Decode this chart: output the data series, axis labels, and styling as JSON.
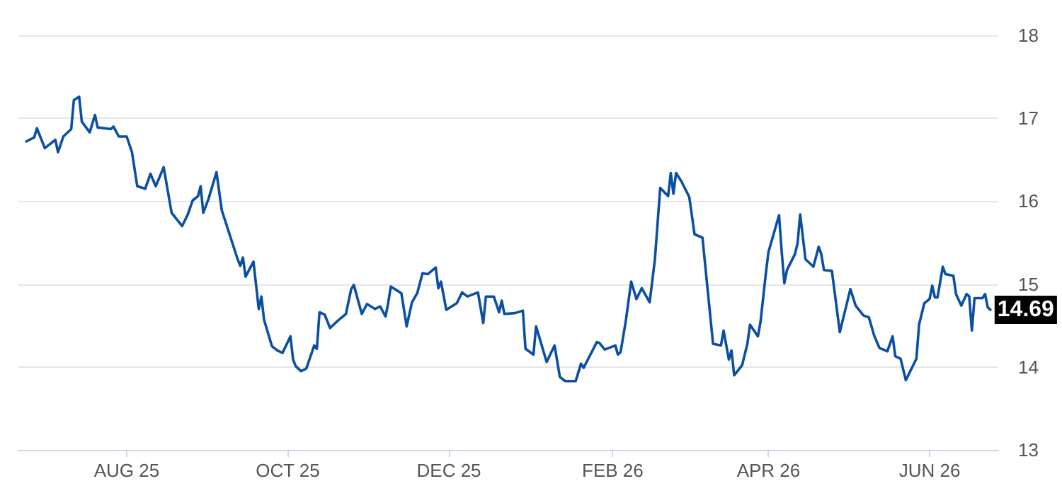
{
  "chart_data": {
    "type": "line",
    "color": "#0b4fa3",
    "x": [
      "2025-06-24",
      "2025-06-27",
      "2025-06-28",
      "2025-07-01",
      "2025-07-05",
      "2025-07-06",
      "2025-07-08",
      "2025-07-11",
      "2025-07-12",
      "2025-07-14",
      "2025-07-15",
      "2025-07-18",
      "2025-07-20",
      "2025-07-21",
      "2025-07-26",
      "2025-07-27",
      "2025-07-29",
      "2025-08-01",
      "2025-08-03",
      "2025-08-05",
      "2025-08-08",
      "2025-08-10",
      "2025-08-12",
      "2025-08-15",
      "2025-08-18",
      "2025-08-22",
      "2025-08-24",
      "2025-08-26",
      "2025-08-28",
      "2025-08-29",
      "2025-08-30",
      "2025-09-01",
      "2025-09-04",
      "2025-09-06",
      "2025-09-12",
      "2025-09-13",
      "2025-09-14",
      "2025-09-15",
      "2025-09-18",
      "2025-09-20",
      "2025-09-21",
      "2025-09-22",
      "2025-09-25",
      "2025-09-27",
      "2025-09-29",
      "2025-10-02",
      "2025-10-03",
      "2025-10-04",
      "2025-10-06",
      "2025-10-08",
      "2025-10-11",
      "2025-10-12",
      "2025-10-13",
      "2025-10-15",
      "2025-10-17",
      "2025-10-20",
      "2025-10-23",
      "2025-10-25",
      "2025-10-26",
      "2025-10-29",
      "2025-10-31",
      "2025-11-03",
      "2025-11-05",
      "2025-11-07",
      "2025-11-08",
      "2025-11-09",
      "2025-11-13",
      "2025-11-15",
      "2025-11-17",
      "2025-11-19",
      "2025-11-21",
      "2025-11-23",
      "2025-11-26",
      "2025-11-27",
      "2025-11-28",
      "2025-11-30",
      "2025-12-04",
      "2025-12-06",
      "2025-12-08",
      "2025-12-12",
      "2025-12-14",
      "2025-12-15",
      "2025-12-18",
      "2025-12-20",
      "2025-12-21",
      "2025-12-22",
      "2025-12-26",
      "2025-12-29",
      "2025-12-30",
      "2026-01-02",
      "2026-01-03",
      "2026-01-07",
      "2026-01-10",
      "2026-01-12",
      "2026-01-14",
      "2026-01-18",
      "2026-01-20",
      "2026-01-21",
      "2026-01-26",
      "2026-01-27",
      "2026-01-29",
      "2026-02-02",
      "2026-02-03",
      "2026-02-04",
      "2026-02-06",
      "2026-02-08",
      "2026-02-10",
      "2026-02-12",
      "2026-02-15",
      "2026-02-17",
      "2026-02-19",
      "2026-02-22",
      "2026-02-23",
      "2026-02-24",
      "2026-02-25",
      "2026-02-27",
      "2026-03-02",
      "2026-03-04",
      "2026-03-07",
      "2026-03-11",
      "2026-03-14",
      "2026-03-15",
      "2026-03-17",
      "2026-03-18",
      "2026-03-19",
      "2026-03-22",
      "2026-03-24",
      "2026-03-25",
      "2026-03-28",
      "2026-03-29",
      "2026-03-31",
      "2026-04-01",
      "2026-04-05",
      "2026-04-06",
      "2026-04-07",
      "2026-04-08",
      "2026-04-11",
      "2026-04-12",
      "2026-04-13",
      "2026-04-15",
      "2026-04-18",
      "2026-04-20",
      "2026-04-21",
      "2026-04-22",
      "2026-04-25",
      "2026-04-28",
      "2026-05-02",
      "2026-05-04",
      "2026-05-07",
      "2026-05-09",
      "2026-05-11",
      "2026-05-13",
      "2026-05-16",
      "2026-05-18",
      "2026-05-19",
      "2026-05-21",
      "2026-05-23",
      "2026-05-27",
      "2026-05-28",
      "2026-05-30",
      "2026-06-01",
      "2026-06-02",
      "2026-06-03",
      "2026-06-04",
      "2026-06-06",
      "2026-06-07",
      "2026-06-10",
      "2026-06-11",
      "2026-06-13",
      "2026-06-15",
      "2026-06-16",
      "2026-06-17",
      "2026-06-18",
      "2026-06-21",
      "2026-06-22",
      "2026-06-23",
      "2026-06-24"
    ],
    "values": [
      16.72,
      16.77,
      16.88,
      16.64,
      16.74,
      16.59,
      16.78,
      16.87,
      17.22,
      17.26,
      16.96,
      16.83,
      17.04,
      16.89,
      16.87,
      16.9,
      16.78,
      16.78,
      16.59,
      16.18,
      16.15,
      16.33,
      16.18,
      16.41,
      15.86,
      15.7,
      15.83,
      16.01,
      16.06,
      16.18,
      15.86,
      16.03,
      16.35,
      15.89,
      15.3,
      15.22,
      15.32,
      15.09,
      15.27,
      14.7,
      14.85,
      14.57,
      14.25,
      14.2,
      14.17,
      14.37,
      14.09,
      14.01,
      13.95,
      13.98,
      14.26,
      14.22,
      14.66,
      14.63,
      14.47,
      14.56,
      14.64,
      14.94,
      14.99,
      14.64,
      14.76,
      14.7,
      14.73,
      14.61,
      14.77,
      14.97,
      14.89,
      14.49,
      14.78,
      14.89,
      15.13,
      15.12,
      15.2,
      14.95,
      15.03,
      14.69,
      14.77,
      14.9,
      14.85,
      14.9,
      14.53,
      14.85,
      14.85,
      14.66,
      14.8,
      14.64,
      14.65,
      14.68,
      14.22,
      14.15,
      14.49,
      14.06,
      14.26,
      13.88,
      13.83,
      13.83,
      14.04,
      13.99,
      14.3,
      14.29,
      14.21,
      14.26,
      14.15,
      14.18,
      14.56,
      15.03,
      14.82,
      14.95,
      14.78,
      15.3,
      16.16,
      16.06,
      16.34,
      16.09,
      16.34,
      16.24,
      16.05,
      15.6,
      15.56,
      14.28,
      14.26,
      14.44,
      14.09,
      14.2,
      13.9,
      14.02,
      14.28,
      14.51,
      14.37,
      14.55,
      15.13,
      15.39,
      15.83,
      15.39,
      15.01,
      15.17,
      15.36,
      15.49,
      15.84,
      15.3,
      15.21,
      15.45,
      15.36,
      15.17,
      15.16,
      14.42,
      14.94,
      14.74,
      14.62,
      14.6,
      14.38,
      14.23,
      14.19,
      14.37,
      14.13,
      14.1,
      13.84,
      14.1,
      14.51,
      14.77,
      14.82,
      14.98,
      14.84,
      14.84,
      15.21,
      15.12,
      15.1,
      14.88,
      14.74,
      14.88,
      14.85,
      14.44,
      14.83,
      14.83,
      14.88,
      14.72,
      14.69
    ],
    "xlim": [
      "2025-06-21",
      "2026-06-27"
    ],
    "xticks": [
      {
        "value": "2025-08-01",
        "label": "AUG 25"
      },
      {
        "value": "2025-10-01",
        "label": "OCT 25"
      },
      {
        "value": "2025-12-01",
        "label": "DEC 25"
      },
      {
        "value": "2026-02-01",
        "label": "FEB 26"
      },
      {
        "value": "2026-04-01",
        "label": "APR 26"
      },
      {
        "value": "2026-06-01",
        "label": "JUN 26"
      }
    ],
    "ylim": [
      13,
      18
    ],
    "yticks": [
      13,
      14,
      15,
      16,
      17,
      18
    ],
    "grid": "y",
    "marker": "none",
    "line_style": "solid",
    "annotations": [
      {
        "text": "14.69",
        "x": "2026-06-24",
        "y": 14.69
      }
    ]
  }
}
